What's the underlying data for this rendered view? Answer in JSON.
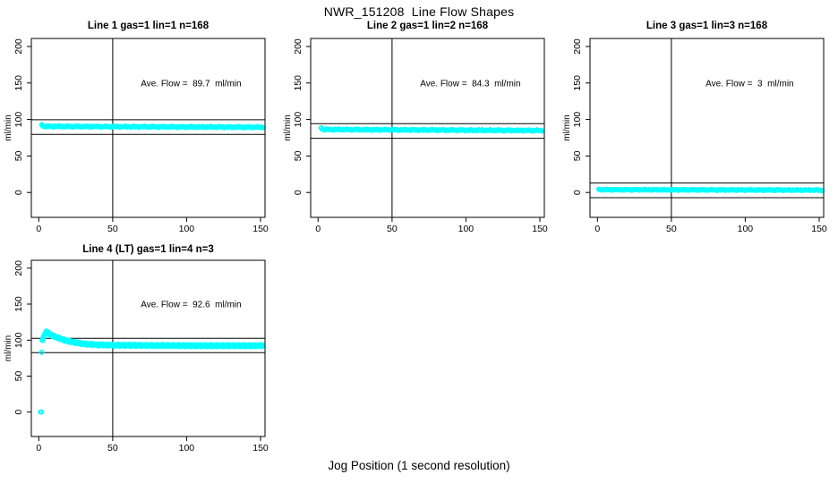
{
  "figure": {
    "title": "NWR_151208  Line Flow Shapes",
    "xlabel": "Jog Position (1 second resolution)",
    "bg_color": "#ffffff",
    "point_color": "#00ffff",
    "axis_color": "#000000"
  },
  "chart_data": [
    {
      "type": "scatter",
      "title": "Line 1 gas=1 lin=1 n=168",
      "ylabel": "ml/min",
      "n": 168,
      "ave_flow": 89.7,
      "annotation": "Ave. Flow =  89.7  ml/min",
      "annotation_at": {
        "x": 103,
        "y": 150
      },
      "xlim": [
        -5,
        153
      ],
      "ylim": [
        -34,
        211
      ],
      "xticks": [
        0,
        50,
        100,
        150
      ],
      "yticks": [
        0,
        50,
        100,
        150,
        200
      ],
      "vline_x": 50,
      "ref_lines": [
        99.7,
        79.7
      ],
      "grid": false,
      "series": {
        "kind": "band",
        "x_start": 3,
        "x_end": 152,
        "step": 0.9,
        "y_start": 90.6,
        "y_end": 89.4,
        "noise": 1.0,
        "lead_points": [
          [
            2,
            93
          ],
          [
            2.6,
            91.5
          ]
        ]
      }
    },
    {
      "type": "scatter",
      "title": "Line 2 gas=1 lin=2 n=168",
      "ylabel": "ml/min",
      "n": 168,
      "ave_flow": 84.3,
      "annotation": "Ave. Flow =  84.3  ml/min",
      "annotation_at": {
        "x": 103,
        "y": 150
      },
      "xlim": [
        -5,
        153
      ],
      "ylim": [
        -34,
        211
      ],
      "xticks": [
        0,
        50,
        100,
        150
      ],
      "yticks": [
        0,
        50,
        100,
        150,
        200
      ],
      "vline_x": 50,
      "ref_lines": [
        94.3,
        74.3
      ],
      "grid": false,
      "series": {
        "kind": "band",
        "x_start": 3,
        "x_end": 152,
        "step": 0.9,
        "y_start": 86.3,
        "y_end": 84.9,
        "noise": 1.0,
        "lead_points": [
          [
            2,
            88.5
          ]
        ]
      }
    },
    {
      "type": "scatter",
      "title": "Line 3 gas=1 lin=3 n=168",
      "ylabel": "ml/min",
      "n": 168,
      "ave_flow": 3,
      "annotation": "Ave. Flow =  3  ml/min",
      "annotation_at": {
        "x": 103,
        "y": 150
      },
      "xlim": [
        -5,
        153
      ],
      "ylim": [
        -34,
        211
      ],
      "xticks": [
        0,
        50,
        100,
        150
      ],
      "yticks": [
        0,
        50,
        100,
        150,
        200
      ],
      "vline_x": 50,
      "ref_lines": [
        13,
        -7
      ],
      "grid": false,
      "series": {
        "kind": "band",
        "x_start": 1.5,
        "x_end": 152,
        "step": 0.9,
        "y_start": 3.9,
        "y_end": 3.3,
        "noise": 0.8,
        "lead_points": [
          [
            1,
            4.5
          ]
        ]
      }
    },
    {
      "type": "scatter",
      "title": "Line 4 (LT) gas=1 lin=4 n=3",
      "ylabel": "ml/min",
      "n": 3,
      "ave_flow": 92.6,
      "annotation": "Ave. Flow =  92.6  ml/min",
      "annotation_at": {
        "x": 103,
        "y": 150
      },
      "xlim": [
        -5,
        153
      ],
      "ylim": [
        -34,
        211
      ],
      "xticks": [
        0,
        50,
        100,
        150
      ],
      "yticks": [
        0,
        50,
        100,
        150,
        200
      ],
      "vline_x": 50,
      "ref_lines": [
        102.6,
        82.6
      ],
      "grid": false,
      "series": {
        "kind": "curve",
        "n_series": 3,
        "spread": 0.9,
        "x_start": 2.6,
        "x_end": 152,
        "step": 0.8,
        "anchors": [
          [
            2.6,
            101
          ],
          [
            3,
            103
          ],
          [
            4,
            108
          ],
          [
            5,
            111.5
          ],
          [
            6,
            110.5
          ],
          [
            8,
            107.5
          ],
          [
            10,
            105.5
          ],
          [
            12,
            104
          ],
          [
            14,
            102.5
          ],
          [
            16,
            101
          ],
          [
            18,
            99.5
          ],
          [
            20,
            98.5
          ],
          [
            24,
            97
          ],
          [
            28,
            95.5
          ],
          [
            32,
            94.5
          ],
          [
            36,
            94
          ],
          [
            40,
            93.5
          ],
          [
            45,
            93.2
          ],
          [
            50,
            93
          ],
          [
            60,
            92.8
          ],
          [
            70,
            92.6
          ],
          [
            80,
            92.5
          ],
          [
            90,
            92.4
          ],
          [
            100,
            92.3
          ],
          [
            110,
            92.3
          ],
          [
            120,
            92.2
          ],
          [
            130,
            92.3
          ],
          [
            140,
            92.2
          ],
          [
            152,
            92.4
          ]
        ],
        "lead_points": [
          [
            1.2,
            0
          ],
          [
            1.8,
            0
          ],
          [
            2,
            83
          ],
          [
            2.3,
            100
          ]
        ]
      }
    }
  ]
}
